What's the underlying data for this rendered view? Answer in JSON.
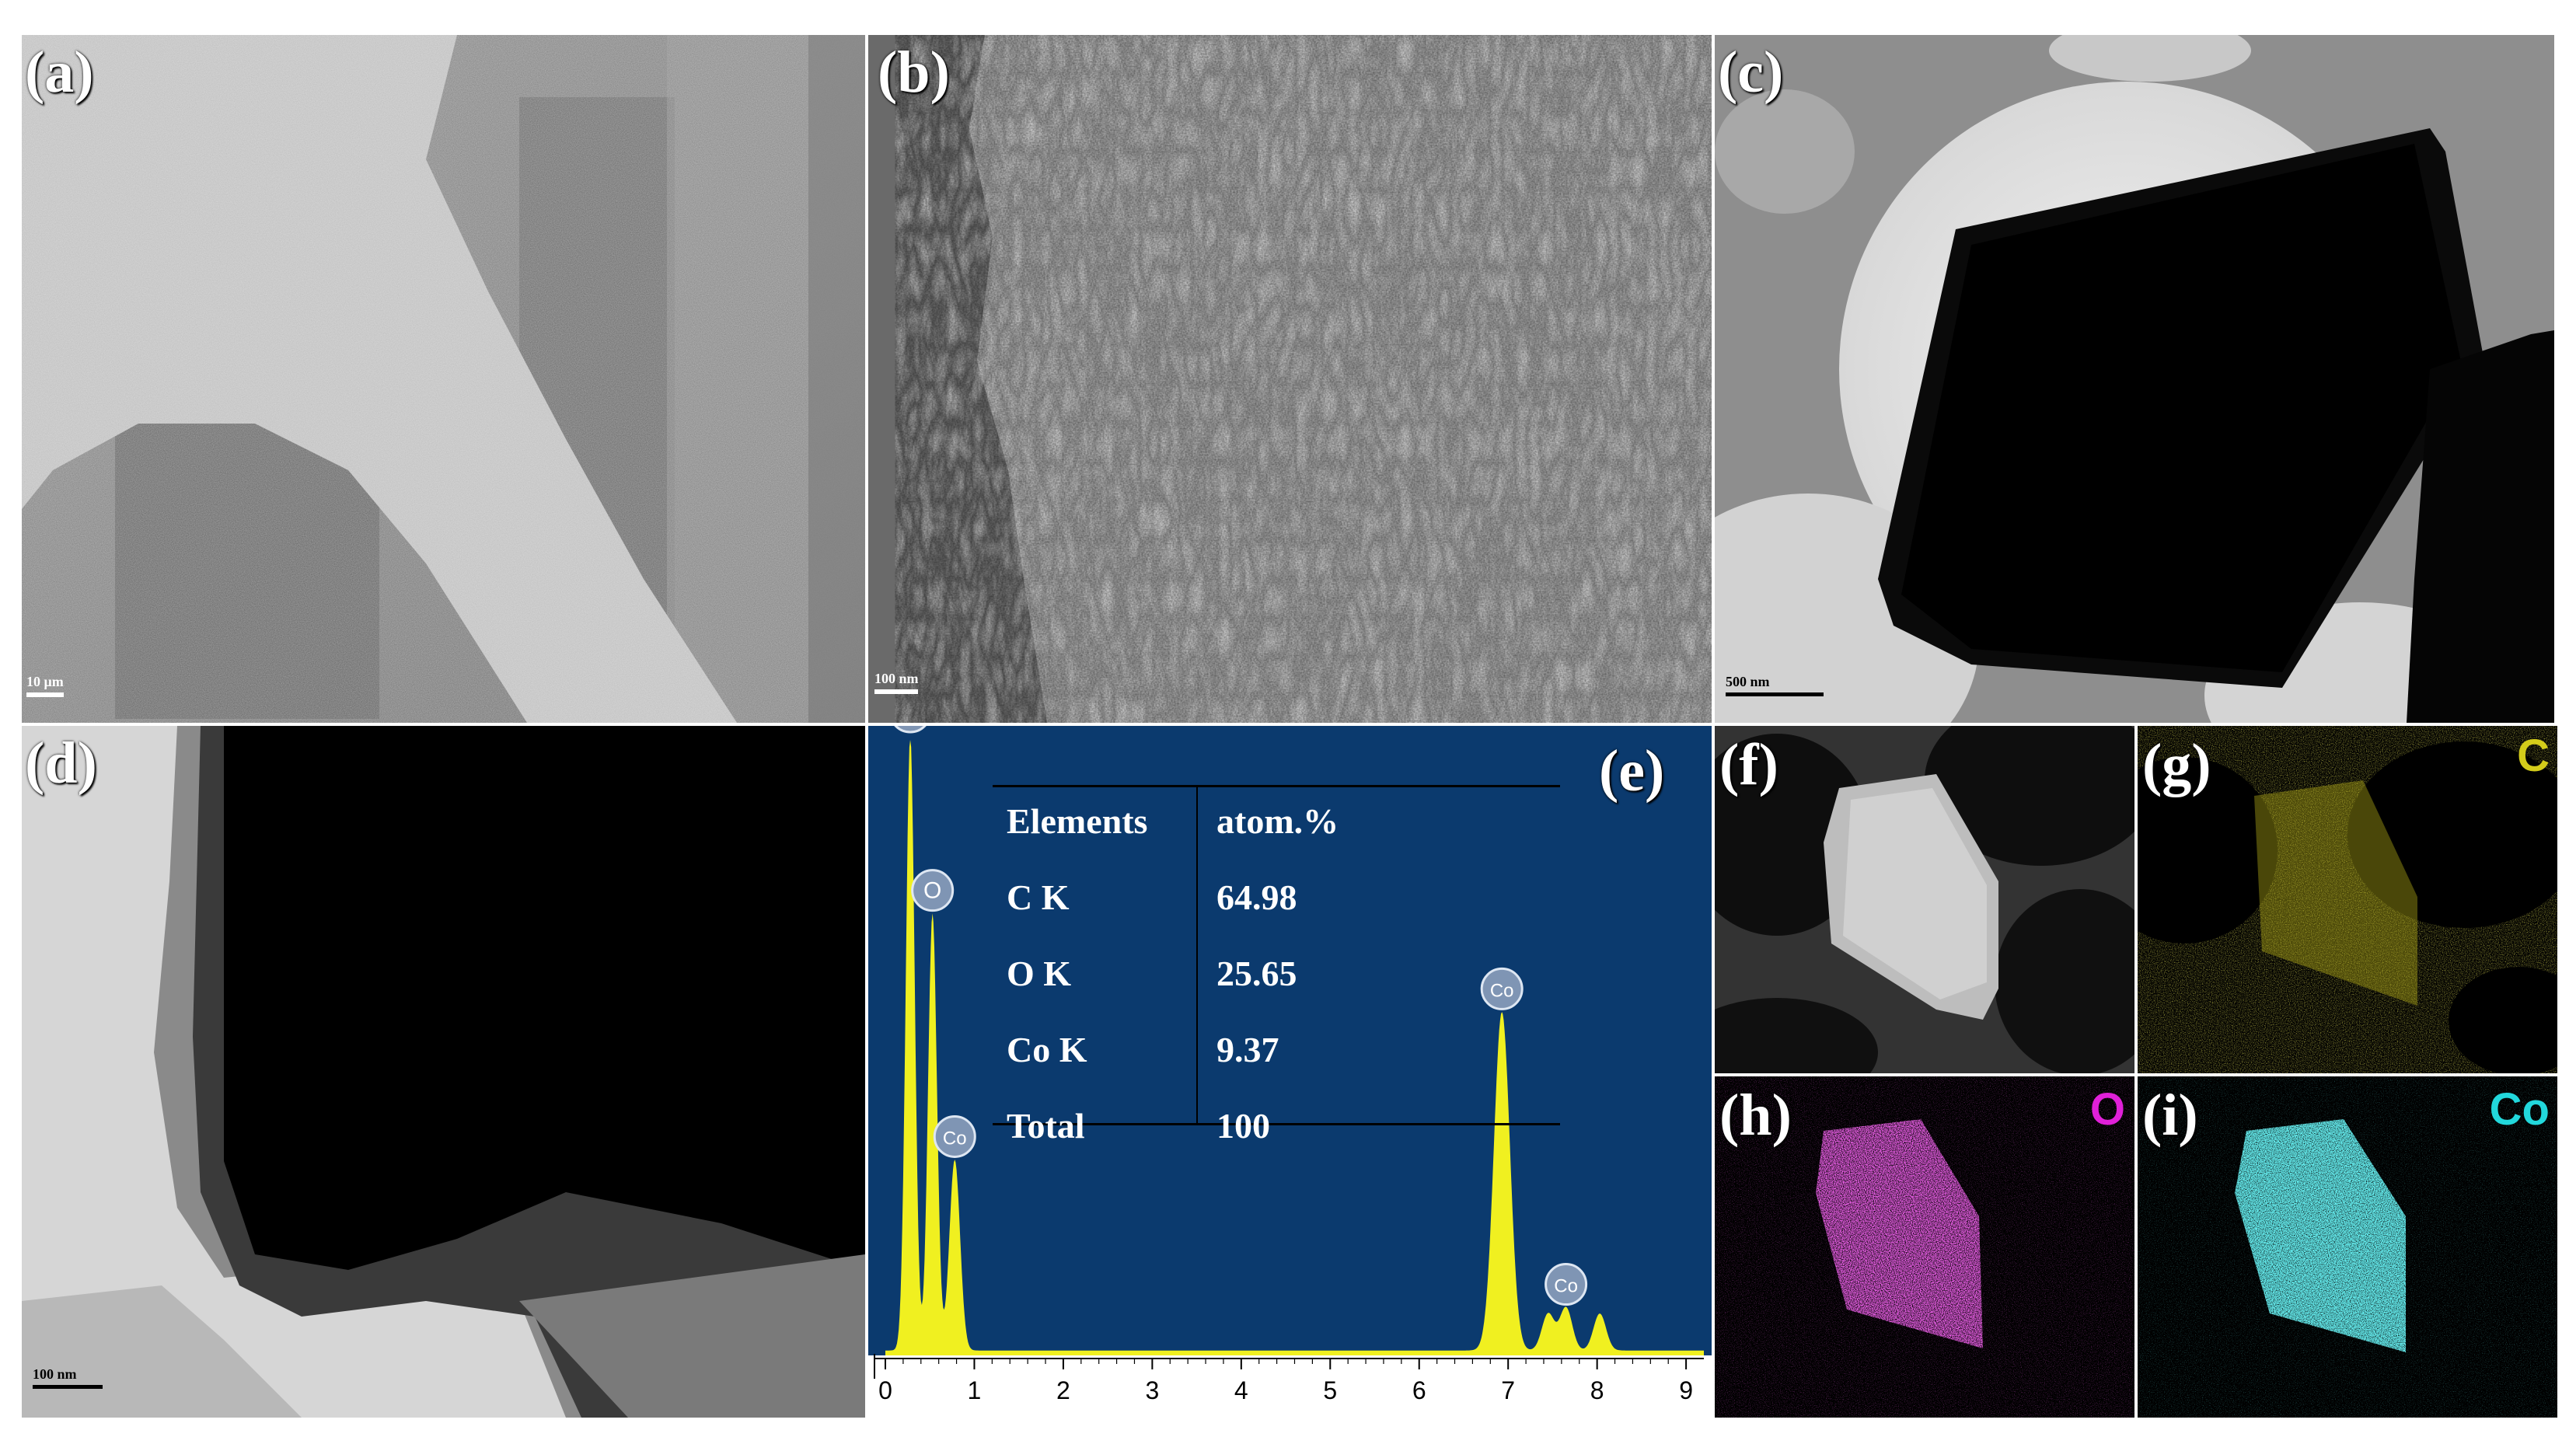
{
  "panels": {
    "a": {
      "label": "(a)",
      "scale": "10 μm"
    },
    "b": {
      "label": "(b)",
      "scale": "100 nm"
    },
    "c": {
      "label": "(c)",
      "scale": "500 nm"
    },
    "d": {
      "label": "(d)",
      "scale": "100 nm"
    },
    "e": {
      "label": "(e)"
    },
    "f": {
      "label": "(f)"
    },
    "g": {
      "label": "(g)",
      "element": "C",
      "element_color": "#d4cc1a"
    },
    "h": {
      "label": "(h)",
      "element": "O",
      "element_color": "#e020d8"
    },
    "i": {
      "label": "(i)",
      "element": "Co",
      "element_color": "#22d8dc"
    }
  },
  "eds_table": {
    "headers": [
      "Elements",
      "atom.%"
    ],
    "rows": [
      [
        "C K",
        "64.98"
      ],
      [
        "O K",
        "25.65"
      ],
      [
        "Co K",
        "9.37"
      ],
      [
        "Total",
        "100"
      ]
    ]
  },
  "chart_data": {
    "type": "line",
    "title": "",
    "xlabel": "",
    "ylabel": "",
    "xlim": [
      0,
      9.2
    ],
    "x_ticks": [
      "0",
      "1",
      "2",
      "3",
      "4",
      "5",
      "6",
      "7",
      "8",
      "9"
    ],
    "series_color": "#f0f020",
    "background": "#0b3a6e",
    "peaks": [
      {
        "label": "C",
        "x": 0.28,
        "height": 1.0
      },
      {
        "label": "O",
        "x": 0.53,
        "height": 0.71
      },
      {
        "label": "Co",
        "x": 0.78,
        "height": 0.31
      },
      {
        "label": "Co",
        "x": 6.93,
        "height": 0.55
      },
      {
        "label": "Co",
        "x": 7.65,
        "height": 0.07
      }
    ],
    "minor_peaks": [
      {
        "x": 7.45,
        "height": 0.06
      },
      {
        "x": 8.03,
        "height": 0.06
      }
    ]
  }
}
